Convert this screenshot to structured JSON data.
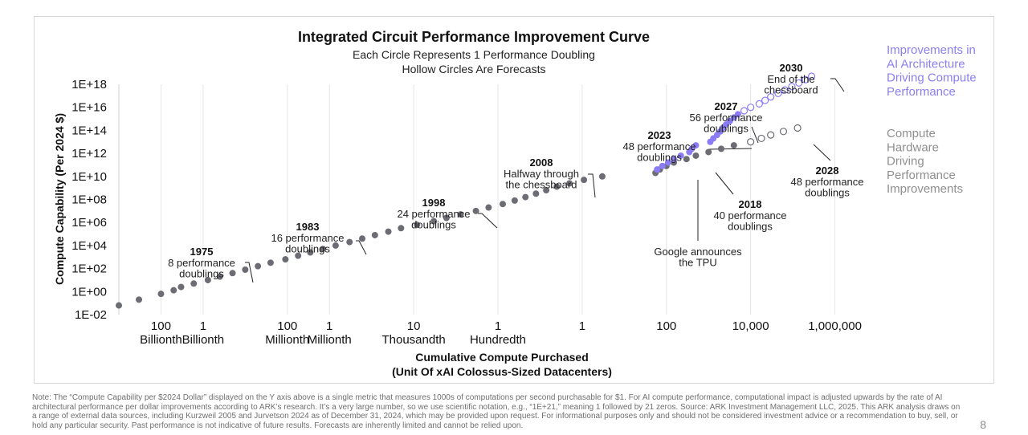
{
  "colors": {
    "ai": "#8b7cf6",
    "hardware": "#6c6c74",
    "grid": "#e6e6e6",
    "leader": "#222222"
  },
  "chart_data": {
    "type": "scatter",
    "title": "Integrated Circuit Performance Improvement Curve",
    "subtitle_lines": [
      "Each Circle Represents 1 Performance Doubling",
      "Hollow Circles Are Forecasts"
    ],
    "xlabel_lines": [
      "Cumulative Compute Purchased",
      "(Unit Of xAI Colossus-Sized Datacenters)"
    ],
    "ylabel": "Compute Capability (Per 2024 $)",
    "x_scale": "log",
    "y_scale": "log",
    "xlim": [
      1e-11,
      10000000.0
    ],
    "ylim": [
      0.01,
      1e+18
    ],
    "grid": "vertical",
    "x_ticks": [
      {
        "value": 1e-10,
        "line1": "100",
        "line2": "Billionth"
      },
      {
        "value": 1e-09,
        "line1": "1",
        "line2": "Billionth"
      },
      {
        "value": 1e-07,
        "line1": "100",
        "line2": "Millionth"
      },
      {
        "value": 1e-06,
        "line1": "1",
        "line2": "Millionth"
      },
      {
        "value": 0.0001,
        "line1": "10",
        "line2": "Thousandth"
      },
      {
        "value": 0.01,
        "line1": "1",
        "line2": "Hundredth"
      },
      {
        "value": 1,
        "line1": "1",
        "line2": ""
      },
      {
        "value": 100,
        "line1": "100",
        "line2": ""
      },
      {
        "value": 10000.0,
        "line1": "10,000",
        "line2": ""
      },
      {
        "value": 1000000.0,
        "line1": "1,000,000",
        "line2": ""
      }
    ],
    "y_ticks": [
      {
        "value": 0.01,
        "label": "1E-02"
      },
      {
        "value": 1.0,
        "label": "1E+00"
      },
      {
        "value": 100.0,
        "label": "1E+02"
      },
      {
        "value": 10000.0,
        "label": "1E+04"
      },
      {
        "value": 1000000.0,
        "label": "1E+06"
      },
      {
        "value": 100000000.0,
        "label": "1E+08"
      },
      {
        "value": 10000000000.0,
        "label": "1E+10"
      },
      {
        "value": 1000000000000.0,
        "label": "1E+12"
      },
      {
        "value": 100000000000000.0,
        "label": "1E+14"
      },
      {
        "value": 1e+16,
        "label": "1E+16"
      },
      {
        "value": 1e+18,
        "label": "1E+18"
      }
    ],
    "series": [
      {
        "name": "Compute Hardware Driving Performance Improvements",
        "color": "#6c6c74",
        "points": [
          [
            1e-11,
            0.063
          ],
          [
            3e-11,
            0.2
          ],
          [
            1e-10,
            0.63
          ],
          [
            2e-10,
            1.3
          ],
          [
            3e-10,
            2.5
          ],
          [
            6e-10,
            5.0
          ],
          [
            1.3e-09,
            10.0
          ],
          [
            2.5e-09,
            20.0
          ],
          [
            5e-09,
            40.0
          ],
          [
            1e-08,
            80.0
          ],
          [
            2e-08,
            160.0
          ],
          [
            4e-08,
            320.0
          ],
          [
            9e-08,
            630.0
          ],
          [
            1.8e-07,
            1300.0
          ],
          [
            3.5e-07,
            2500.0
          ],
          [
            7e-07,
            5000.0
          ],
          [
            1.4e-06,
            10000.0
          ],
          [
            3e-06,
            20000.0
          ],
          [
            6e-06,
            40000.0
          ],
          [
            1.2e-05,
            80000.0
          ],
          [
            2.5e-05,
            160000.0
          ],
          [
            5e-05,
            320000.0
          ],
          [
            0.00012,
            630000.0
          ],
          [
            0.0003,
            1300000.0
          ],
          [
            0.0006,
            2500000.0
          ],
          [
            0.0013,
            5000000.0
          ],
          [
            0.003,
            10000000.0
          ],
          [
            0.006,
            20000000.0
          ],
          [
            0.013,
            40000000.0
          ],
          [
            0.025,
            80000000.0
          ],
          [
            0.045,
            160000000.0
          ],
          [
            0.08,
            320000000.0
          ],
          [
            0.14,
            630000000.0
          ],
          [
            0.25,
            1300000000.0
          ],
          [
            0.5,
            2500000000.0
          ],
          [
            1.1,
            5000000000.0
          ],
          [
            3.0,
            10000000000.0
          ],
          [
            55.0,
            20000000000.0
          ],
          [
            70.0,
            40000000000.0
          ],
          [
            100.0,
            80000000000.0
          ],
          [
            150.0,
            160000000000.0
          ],
          [
            300.0,
            320000000000.0
          ],
          [
            500.0,
            630000000000.0
          ],
          [
            1000.0,
            1300000000000.0
          ],
          [
            2000.0,
            2500000000000.0
          ],
          [
            4000.0,
            5000000000000.0
          ]
        ]
      },
      {
        "name": "Compute Hardware Forecast",
        "color": "#6c6c74",
        "forecast": true,
        "points": [
          [
            10000.0,
            10000000000000.0
          ],
          [
            18000.0,
            20000000000000.0
          ],
          [
            30000.0,
            40000000000000.0
          ],
          [
            60000.0,
            80000000000000.0
          ],
          [
            130000.0,
            160000000000000.0
          ]
        ]
      },
      {
        "name": "Improvements in AI Architecture Driving Compute Performance",
        "color": "#8b7cf6",
        "points": [
          [
            60.0,
            40000000000.0
          ],
          [
            80.0,
            80000000000.0
          ],
          [
            110.0,
            160000000000.0
          ],
          [
            150.0,
            320000000000.0
          ],
          [
            220.0,
            630000000000.0
          ],
          [
            350.0,
            1300000000000.0
          ],
          [
            400.0,
            2500000000000.0
          ],
          [
            500.0,
            5000000000000.0
          ],
          [
            1100.0,
            10000000000000.0
          ],
          [
            1300.0,
            20000000000000.0
          ],
          [
            1600.0,
            40000000000000.0
          ],
          [
            1900.0,
            80000000000000.0
          ],
          [
            2200.0,
            160000000000000.0
          ],
          [
            2600.0,
            320000000000000.0
          ],
          [
            3200.0,
            630000000000000.0
          ],
          [
            4000.0,
            1300000000000000.0
          ],
          [
            5000.0,
            2500000000000000.0
          ]
        ]
      },
      {
        "name": "AI Architecture Forecast",
        "color": "#8b7cf6",
        "forecast": true,
        "points": [
          [
            7000.0,
            5000000000000000.0
          ],
          [
            10000.0,
            1e+16
          ],
          [
            16000.0,
            2e+16
          ],
          [
            22000.0,
            4e+16
          ],
          [
            30000.0,
            8e+16
          ],
          [
            45000.0,
            1.6e+17
          ],
          [
            65000.0,
            3.2e+17
          ],
          [
            95000.0,
            6.3e+17
          ],
          [
            140000.0,
            1.3e+18
          ],
          [
            200000.0,
            2.5e+18
          ],
          [
            280000.0,
            5e+18
          ]
        ]
      }
    ],
    "annotations": [
      {
        "id": "1975",
        "year": "1975",
        "text": [
          "8 performance",
          "doublings"
        ],
        "point": [
          3e-08,
          5.0
        ]
      },
      {
        "id": "1983",
        "year": "1983",
        "text": [
          "16 performance",
          "doublings"
        ],
        "point": [
          7e-07,
          1000.0
        ]
      },
      {
        "id": "1998",
        "year": "1998",
        "text": [
          "24 performance",
          "doublings"
        ],
        "point": [
          0.0003,
          250000.0
        ]
      },
      {
        "id": "2008",
        "year": "2008",
        "text": [
          "Halfway through",
          "the chessboard"
        ],
        "point": [
          0.55,
          80000000.0
        ]
      },
      {
        "id": "2023",
        "year": "2023",
        "text": [
          "48 performance",
          "doublings"
        ],
        "point": [
          1400.0,
          3000000000000.0
        ]
      },
      {
        "id": "2027",
        "year": "2027",
        "text": [
          "56 performance",
          "doublings"
        ],
        "point": [
          3000.0,
          160000000000000.0
        ]
      },
      {
        "id": "2030",
        "year": "2030",
        "text": [
          "End of the",
          "chessboard"
        ],
        "point": [
          280000.0,
          5e+18
        ]
      },
      {
        "id": "2018",
        "year": "2018",
        "text": [
          "40 performance",
          "doublings"
        ],
        "point": [
          200.0,
          30000000000.0
        ]
      },
      {
        "id": "2028",
        "year": "2028",
        "text": [
          "48 performance",
          "doublings"
        ],
        "point": [
          15000.0,
          15000000000000.0
        ]
      },
      {
        "id": "tpu",
        "year": "",
        "text": [
          "Google announces",
          "the TPU"
        ],
        "point": [
          80.0,
          50000000000.0
        ]
      }
    ],
    "side_labels": {
      "ai": [
        "Improvements in",
        "AI Architecture",
        "Driving Compute",
        "Performance"
      ],
      "hardware": [
        "Compute",
        "Hardware",
        "Driving",
        "Performance",
        "Improvements"
      ]
    }
  },
  "footnote": "Note: The “Compute Capability per $2024 Dollar” displayed on the Y axis above is a single metric that measures 1000s of computations per second purchasable for $1. For AI compute performance, computational impact is adjusted upwards by the rate of AI architectural performance per dollar improvements according to ARK’s research. It’s a very large number, so we use scientific notation, e.g., “1E+21,” meaning 1 followed by 21 zeros. Source: ARK Investment Management LLC, 2025. This ARK analysis draws on a range of external data sources, including Kurzweil 2005 and Jurvetson 2024 as of December 31, 2024, which may be provided upon request. For informational purposes only and should not be considered investment advice or a recommendation to buy, sell, or hold any particular security. Past performance is not indicative of future results. Forecasts are inherently limited and cannot be relied upon.",
  "page_number": "8"
}
